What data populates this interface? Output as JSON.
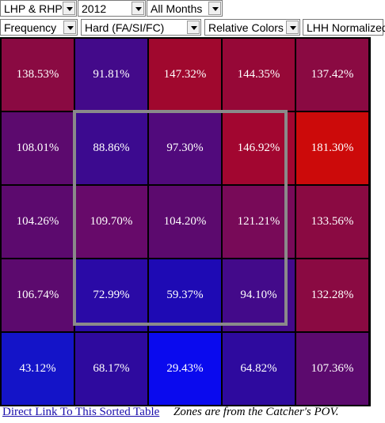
{
  "controls": {
    "row1": [
      {
        "id": "hand",
        "value": "LHP & RHP"
      },
      {
        "id": "year",
        "value": "2012"
      },
      {
        "id": "month",
        "value": "All Months"
      }
    ],
    "row2": [
      {
        "id": "stat",
        "value": "Frequency"
      },
      {
        "id": "pitch",
        "value": "Hard (FA/SI/FC)"
      },
      {
        "id": "colors",
        "value": "Relative Colors"
      }
    ],
    "normalized": "LHH Normalized"
  },
  "chart_data": {
    "type": "heatmap",
    "rows": 5,
    "cols": 5,
    "values": [
      [
        "138.53%",
        "91.81%",
        "147.32%",
        "144.35%",
        "137.42%"
      ],
      [
        "108.01%",
        "88.86%",
        "97.30%",
        "146.92%",
        "181.30%"
      ],
      [
        "104.26%",
        "109.70%",
        "104.20%",
        "121.21%",
        "133.56%"
      ],
      [
        "106.74%",
        "72.99%",
        "59.37%",
        "94.10%",
        "132.28%"
      ],
      [
        "43.12%",
        "68.17%",
        "29.43%",
        "64.82%",
        "107.36%"
      ]
    ],
    "colors": [
      [
        "#8a0a42",
        "#430a8a",
        "#a0082e",
        "#960837",
        "#8a0a42"
      ],
      [
        "#5c0a6e",
        "#3c0a8f",
        "#510a7c",
        "#a20630",
        "#cc0a0a"
      ],
      [
        "#5c0a6e",
        "#670a6a",
        "#5c0a6e",
        "#780a58",
        "#8a0a42"
      ],
      [
        "#5c0a6e",
        "#2a0aa6",
        "#1e0ab4",
        "#430a8a",
        "#8a0a42"
      ],
      [
        "#1414c8",
        "#2e0a9e",
        "#0a0aee",
        "#2e0a9e",
        "#5c0a6e"
      ]
    ]
  },
  "footer": {
    "link": "Direct Link To This Sorted Table",
    "note": "Zones are from the Catcher's POV."
  }
}
